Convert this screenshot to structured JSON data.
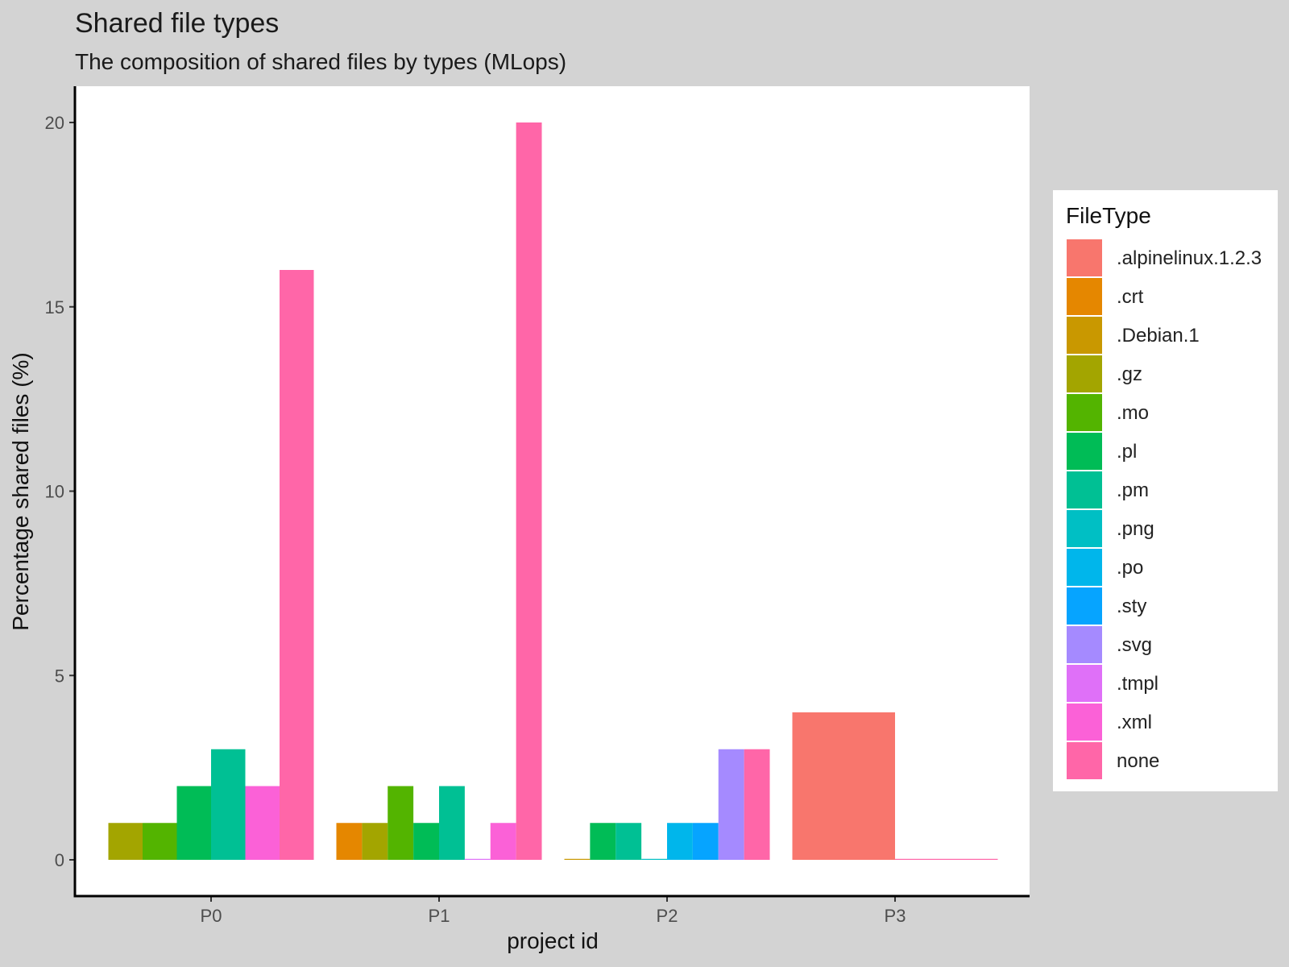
{
  "chart_data": {
    "type": "bar",
    "title": "Shared file types",
    "subtitle": "The composition of shared files by types (MLops)",
    "xlabel": "project id",
    "ylabel": "Percentage shared files (%)",
    "ylim": [
      0,
      21
    ],
    "yticks": [
      0,
      5,
      10,
      15,
      20
    ],
    "grid": false,
    "legend_position": "right",
    "legend_title": "FileType",
    "series": [
      {
        "name": ".alpinelinux.1.2.3",
        "color": "#F8766D"
      },
      {
        "name": ".crt",
        "color": "#E58700"
      },
      {
        "name": ".Debian.1",
        "color": "#C99800"
      },
      {
        "name": ".gz",
        "color": "#A3A500"
      },
      {
        "name": ".mo",
        "color": "#53B400"
      },
      {
        "name": ".pl",
        "color": "#00BC56"
      },
      {
        "name": ".pm",
        "color": "#00C094"
      },
      {
        "name": ".png",
        "color": "#00BFC4"
      },
      {
        "name": ".po",
        "color": "#00B6EB"
      },
      {
        "name": ".sty",
        "color": "#06A4FF"
      },
      {
        "name": ".svg",
        "color": "#A58AFF"
      },
      {
        "name": ".tmpl",
        "color": "#DF70F8"
      },
      {
        "name": ".xml",
        "color": "#FB61D7"
      },
      {
        "name": "none",
        "color": "#FF66A8"
      }
    ],
    "groups": [
      {
        "category": "P0",
        "bars": [
          {
            "type": ".gz",
            "value": 1
          },
          {
            "type": ".mo",
            "value": 1
          },
          {
            "type": ".pl",
            "value": 2
          },
          {
            "type": ".pm",
            "value": 3
          },
          {
            "type": ".xml",
            "value": 2
          },
          {
            "type": "none",
            "value": 16
          }
        ]
      },
      {
        "category": "P1",
        "bars": [
          {
            "type": ".crt",
            "value": 1
          },
          {
            "type": ".gz",
            "value": 1
          },
          {
            "type": ".mo",
            "value": 2
          },
          {
            "type": ".pl",
            "value": 1
          },
          {
            "type": ".pm",
            "value": 2
          },
          {
            "type": ".tmpl",
            "value": 0
          },
          {
            "type": ".xml",
            "value": 1
          },
          {
            "type": "none",
            "value": 20
          }
        ]
      },
      {
        "category": "P2",
        "bars": [
          {
            "type": ".Debian.1",
            "value": 0
          },
          {
            "type": ".pl",
            "value": 1
          },
          {
            "type": ".pm",
            "value": 1
          },
          {
            "type": ".png",
            "value": 0
          },
          {
            "type": ".po",
            "value": 1
          },
          {
            "type": ".sty",
            "value": 1
          },
          {
            "type": ".svg",
            "value": 3
          },
          {
            "type": "none",
            "value": 3
          }
        ]
      },
      {
        "category": "P3",
        "bars": [
          {
            "type": ".alpinelinux.1.2.3",
            "value": 4
          },
          {
            "type": "none",
            "value": 0
          }
        ]
      }
    ]
  }
}
